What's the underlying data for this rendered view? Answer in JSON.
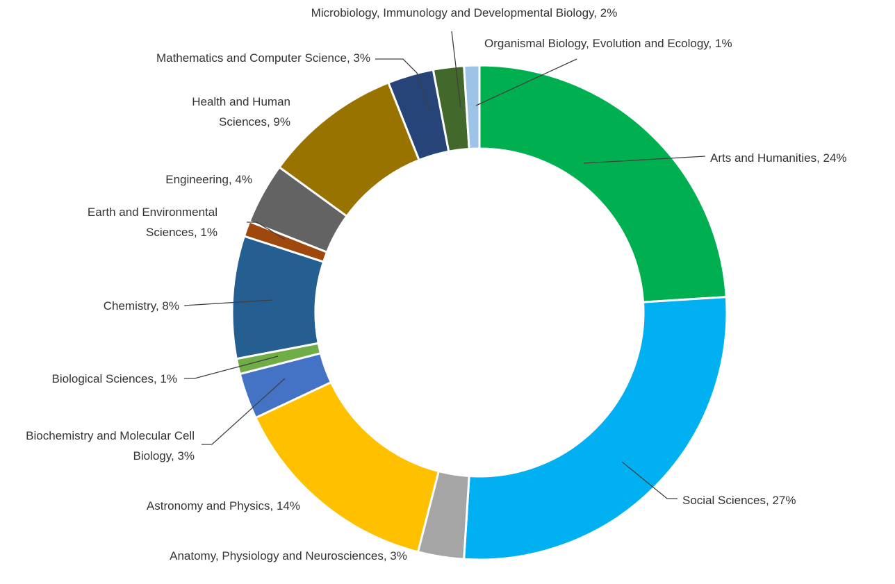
{
  "chart_data": {
    "type": "donut",
    "categories": [
      "Arts and Humanities, 24%",
      "Social Sciences, 27%",
      "Anatomy, Physiology and Neurosciences, 3%",
      "Astronomy and Physics, 14%",
      "Biochemistry and Molecular Cell Biology, 3%",
      "Biological Sciences, 1%",
      "Chemistry, 8%",
      "Earth and Environmental Sciences, 1%",
      "Engineering, 4%",
      "Health and Human Sciences, 9%",
      "Mathematics and Computer Science, 3%",
      "Microbiology, Immunology and Developmental Biology, 2%",
      "Organismal Biology, Evolution and Ecology, 1%"
    ],
    "values": [
      24,
      27,
      3,
      14,
      3,
      1,
      8,
      1,
      4,
      9,
      3,
      2,
      1
    ],
    "colors": [
      "#00b050",
      "#00b0f0",
      "#a5a5a5",
      "#ffc000",
      "#4472c4",
      "#70ad47",
      "#255e91",
      "#9e480e",
      "#636363",
      "#997300",
      "#264478",
      "#43682b",
      "#9dc3e6"
    ]
  }
}
